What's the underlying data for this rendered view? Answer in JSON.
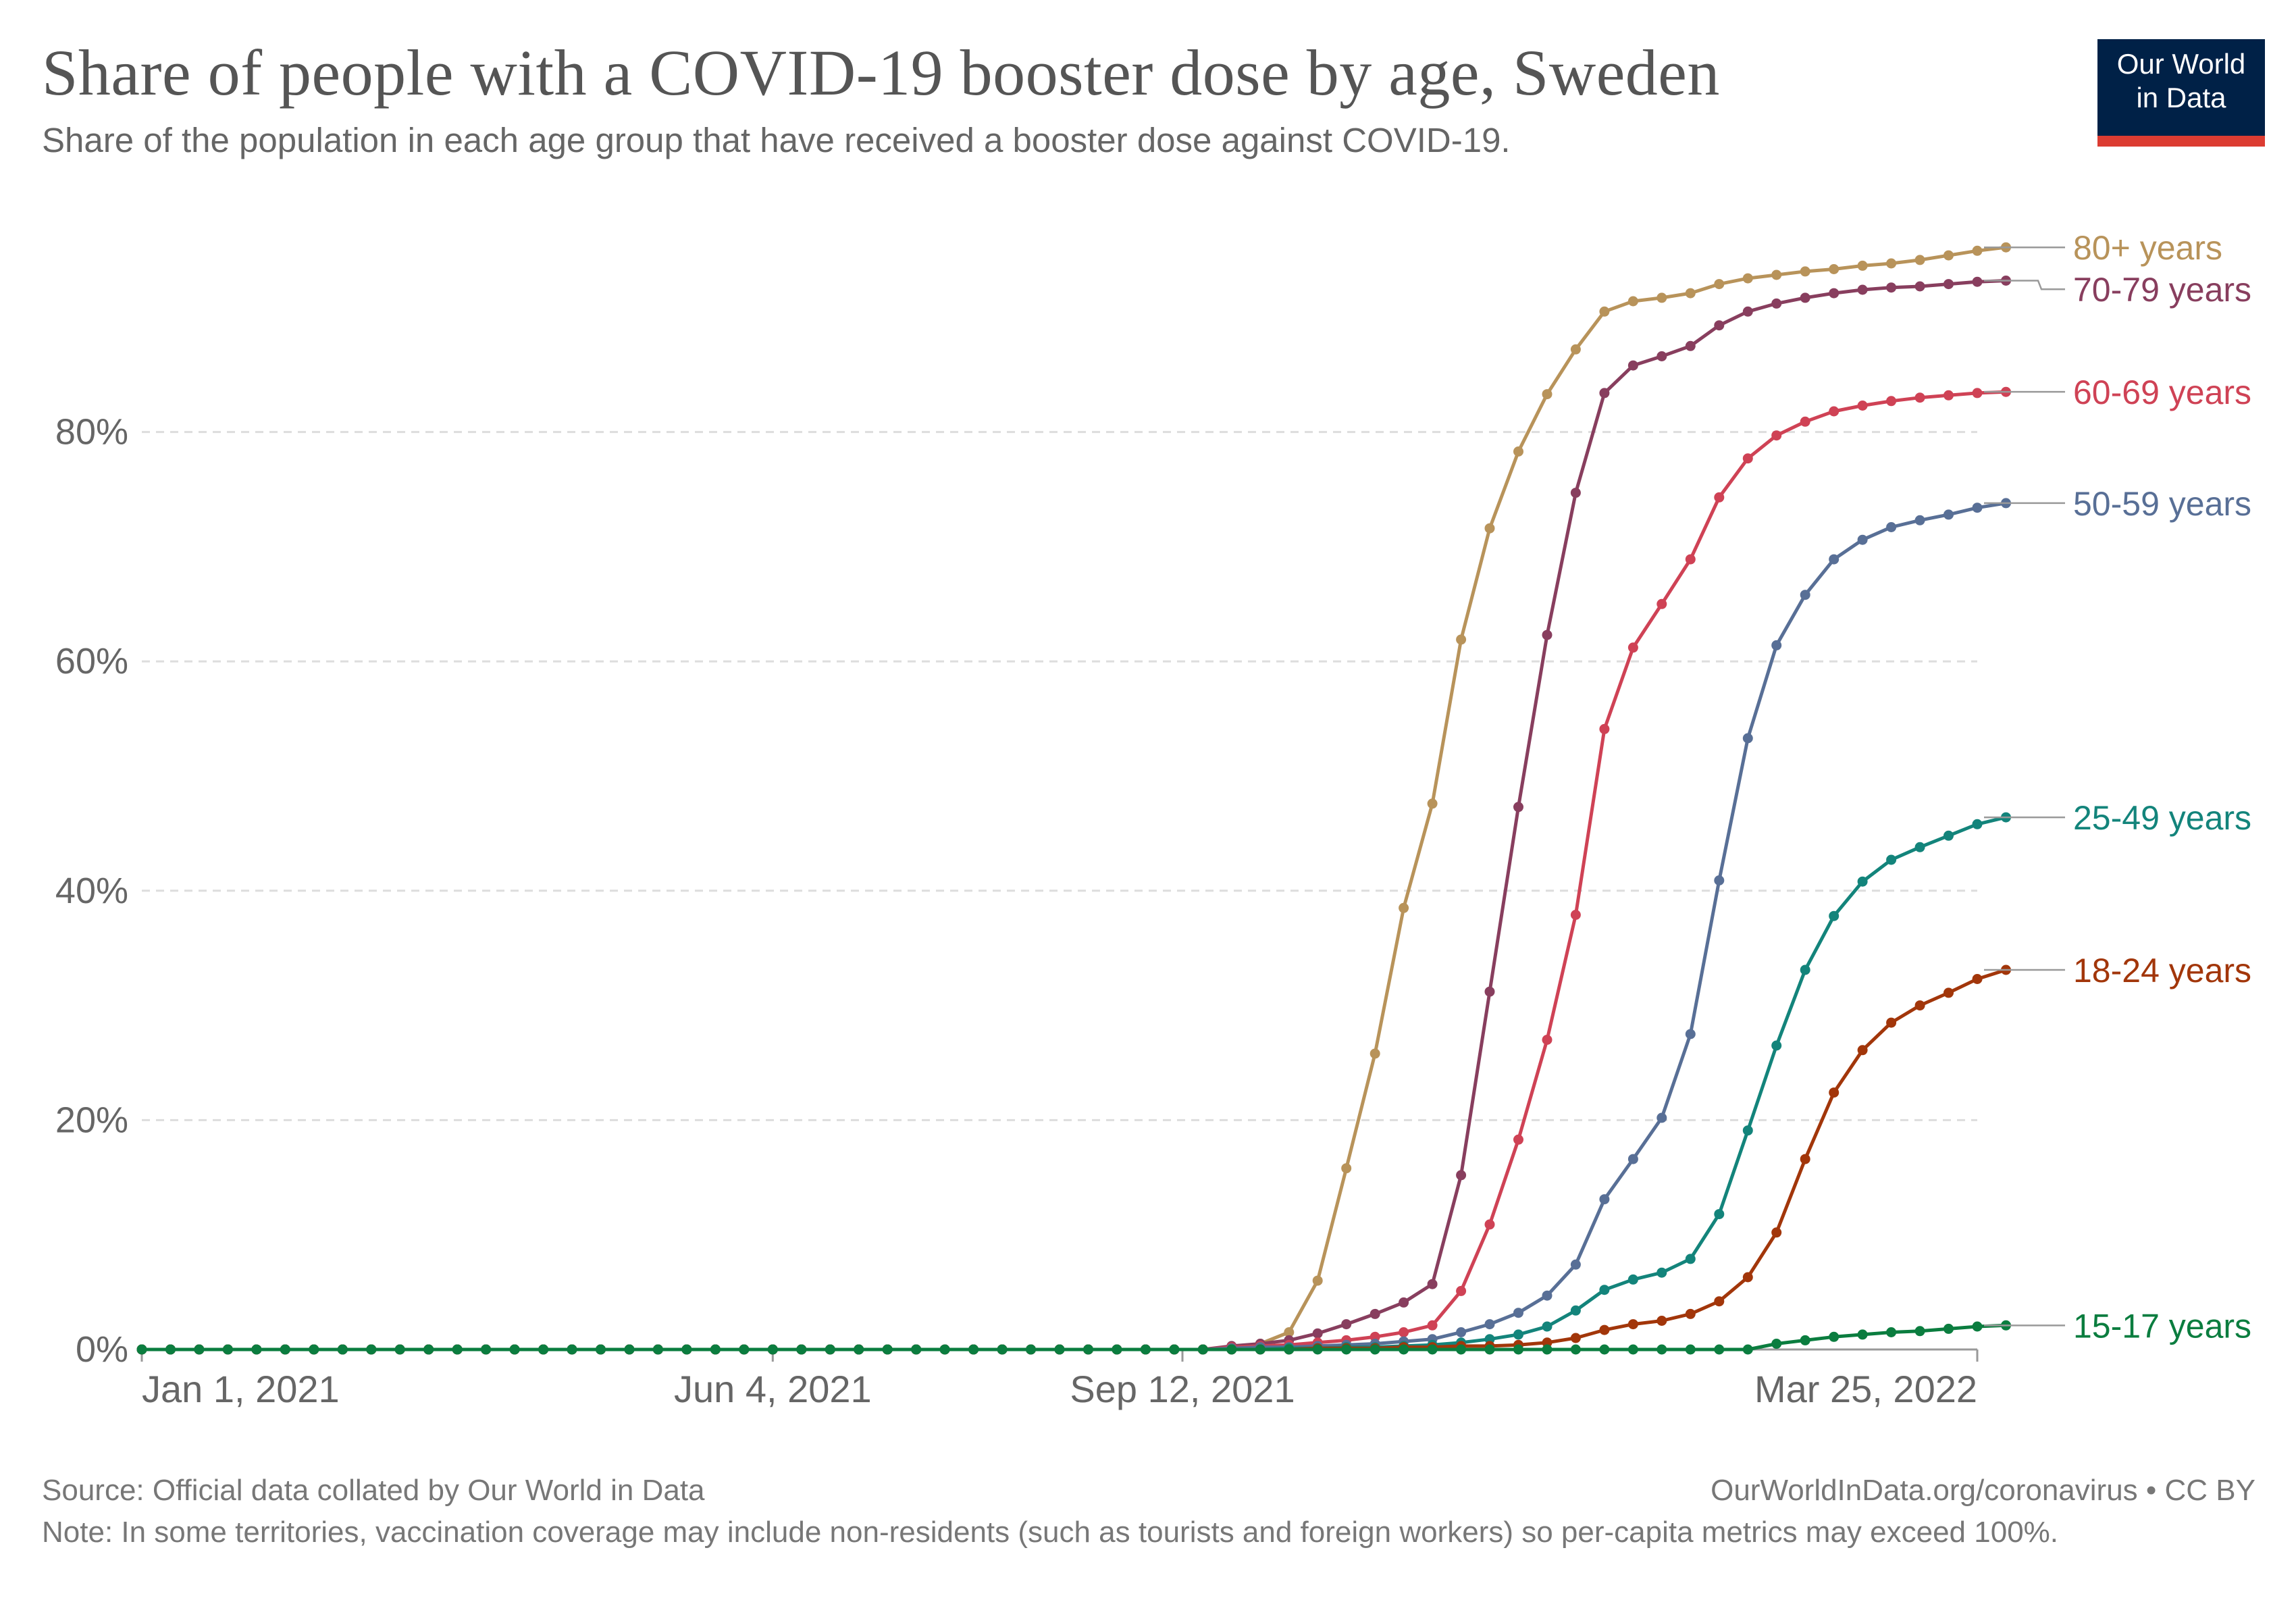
{
  "title": "Share of people with a COVID-19 booster dose by age, Sweden",
  "subtitle": "Share of the population in each age group that have received a booster dose against COVID-19.",
  "logo": {
    "line1": "Our World",
    "line2": "in Data"
  },
  "footer": {
    "source": "Source: Official data collated by Our World in Data",
    "credit": "OurWorldInData.org/coronavirus • CC BY",
    "note": "Note: In some territories, vaccination coverage may include non-residents (such as tourists and foreign workers) so per-capita metrics may exceed 100%."
  },
  "colors": {
    "background": "#ffffff",
    "axis_text": "#666666",
    "grid": "#dddddd",
    "logo_bg": "#002147",
    "logo_bar": "#dc3c32"
  },
  "chart_data": {
    "type": "line",
    "x_start": "2021-01-01",
    "x_step_days": 7,
    "x_end": "2022-03-25",
    "x_ticks": [
      "Jan 1, 2021",
      "Jun 4, 2021",
      "Sep 12, 2021",
      "Mar 25, 2022"
    ],
    "y_ticks": [
      "0%",
      "20%",
      "40%",
      "60%",
      "80%"
    ],
    "ylim": [
      0,
      100
    ],
    "grid": "horizontal dashed",
    "legend": "line-end labels on right",
    "series": [
      {
        "name": "80+ years",
        "color": "#b8935a",
        "start_index": 38,
        "values": [
          0,
          0.5,
          1.5,
          6,
          15.8,
          25.8,
          38.5,
          47.6,
          61.9,
          71.6,
          78.3,
          83.3,
          87.2,
          90.5,
          91.4,
          91.7,
          92.1,
          92.9,
          93.4,
          93.7,
          94,
          94.2,
          94.5,
          94.7,
          95,
          95.4,
          95.8,
          96.1
        ]
      },
      {
        "name": "70-79 years",
        "color": "#883e5e",
        "start_index": 38,
        "values": [
          0.3,
          0.5,
          0.8,
          1.4,
          2.2,
          3.1,
          4.1,
          5.7,
          15.2,
          31.2,
          47.3,
          62.3,
          74.7,
          83.4,
          85.8,
          86.6,
          87.5,
          89.3,
          90.5,
          91.2,
          91.7,
          92.1,
          92.4,
          92.6,
          92.7,
          92.9,
          93.1,
          93.2
        ]
      },
      {
        "name": "60-69 years",
        "color": "#cf4255",
        "start_index": 38,
        "values": [
          0.2,
          0.3,
          0.4,
          0.6,
          0.8,
          1.1,
          1.5,
          2.1,
          5.1,
          10.9,
          18.3,
          27,
          37.9,
          54.1,
          61.2,
          65,
          68.9,
          74.3,
          77.7,
          79.7,
          80.9,
          81.8,
          82.3,
          82.7,
          83,
          83.2,
          83.4,
          83.5
        ]
      },
      {
        "name": "50-59 years",
        "color": "#586f96",
        "start_index": 38,
        "values": [
          0.1,
          0.2,
          0.2,
          0.3,
          0.4,
          0.5,
          0.7,
          0.9,
          1.5,
          2.2,
          3.2,
          4.7,
          7.4,
          13.1,
          16.6,
          20.2,
          27.5,
          40.9,
          53.3,
          61.4,
          65.8,
          68.9,
          70.6,
          71.7,
          72.3,
          72.8,
          73.4,
          73.8
        ]
      },
      {
        "name": "25-49 years",
        "color": "#13847b",
        "start_index": 38,
        "values": [
          0,
          0,
          0.1,
          0.1,
          0.2,
          0.2,
          0.3,
          0.4,
          0.6,
          0.9,
          1.3,
          2,
          3.4,
          5.2,
          6.1,
          6.7,
          7.9,
          11.8,
          19.1,
          26.5,
          33.1,
          37.8,
          40.8,
          42.7,
          43.8,
          44.8,
          45.8,
          46.4
        ]
      },
      {
        "name": "18-24 years",
        "color": "#a2360a",
        "start_index": 38,
        "values": [
          0,
          0,
          0,
          0.1,
          0.1,
          0.1,
          0.2,
          0.2,
          0.3,
          0.3,
          0.4,
          0.6,
          1,
          1.7,
          2.2,
          2.5,
          3.1,
          4.2,
          6.3,
          10.2,
          16.6,
          22.4,
          26.1,
          28.5,
          30,
          31.1,
          32.3,
          33.1
        ]
      },
      {
        "name": "15-17 years",
        "color": "#0b7d3f",
        "start_index": 49,
        "values": [
          0,
          0,
          0,
          0,
          0,
          0,
          0,
          0,
          0.5,
          0.8,
          1.1,
          1.3,
          1.5,
          1.6,
          1.8,
          2,
          2.1
        ]
      }
    ],
    "series_start_zero_weeks": 38
  }
}
